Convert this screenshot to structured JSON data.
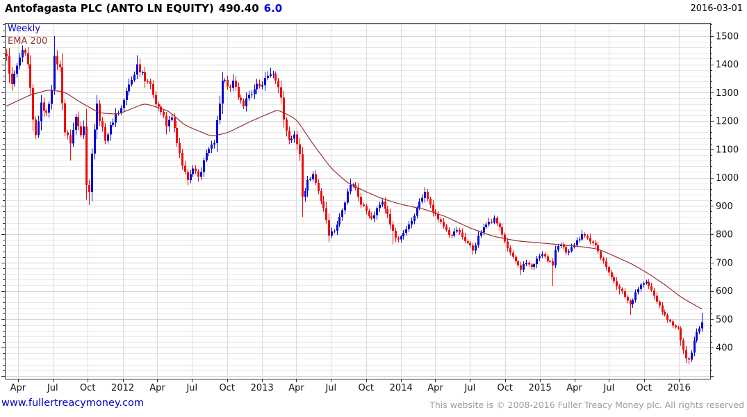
{
  "header": {
    "title": "Antofagasta PLC (ANTO LN EQUITY)",
    "last_price": "490.40",
    "change": "6.0",
    "date": "2016-03-01"
  },
  "footer": {
    "site": "www.fullertreacymoney.com",
    "copyright": "This website is © 2008-2016 Fuller Treacy Money plc. All rights reserved"
  },
  "chart_data": {
    "type": "candlestick",
    "title": "Antofagasta PLC (ANTO LN EQUITY)",
    "frequency": "Weekly",
    "overlay": "EMA 200",
    "last_close": 490.4,
    "change": 6.0,
    "as_of_date": "2016-03-01",
    "axes": {
      "x_start": "2011-03-01",
      "x_end": "2016-02-29",
      "ylim": [
        290,
        1546
      ],
      "yticks": [
        400,
        500,
        600,
        700,
        800,
        900,
        1000,
        1100,
        1200,
        1300,
        1400,
        1500
      ],
      "y_minor_step": 20,
      "grid": true,
      "y_labels_side": "right"
    },
    "xticks": [
      {
        "d": "2011-04-01",
        "label": "Apr"
      },
      {
        "d": "2011-07-01",
        "label": "Jul"
      },
      {
        "d": "2011-10-01",
        "label": "Oct"
      },
      {
        "d": "2012-01-01",
        "label": "2012"
      },
      {
        "d": "2012-04-01",
        "label": "Apr"
      },
      {
        "d": "2012-07-01",
        "label": "Jul"
      },
      {
        "d": "2012-10-01",
        "label": "Oct"
      },
      {
        "d": "2013-01-01",
        "label": "2013"
      },
      {
        "d": "2013-04-01",
        "label": "Apr"
      },
      {
        "d": "2013-07-01",
        "label": "Jul"
      },
      {
        "d": "2013-10-01",
        "label": "Oct"
      },
      {
        "d": "2014-01-01",
        "label": "2014"
      },
      {
        "d": "2014-04-01",
        "label": "Apr"
      },
      {
        "d": "2014-07-01",
        "label": "Jul"
      },
      {
        "d": "2014-10-01",
        "label": "Oct"
      },
      {
        "d": "2015-01-01",
        "label": "2015"
      },
      {
        "d": "2015-04-01",
        "label": "Apr"
      },
      {
        "d": "2015-07-01",
        "label": "Jul"
      },
      {
        "d": "2015-10-01",
        "label": "Oct"
      },
      {
        "d": "2016-01-01",
        "label": "2016"
      }
    ],
    "colors": {
      "up": "#0a0ad4",
      "down": "#ec0e0e",
      "ema": "#993333",
      "grid_minor": "#e8e8e8",
      "grid_major": "#d4d4d4",
      "grid_vertical": "#dcdcdc",
      "border": "#333333",
      "axis_text": "#111111",
      "change_text": "#0000dd",
      "link": "#0000cc",
      "copyright": "#9c9c9c"
    },
    "close_anchors": [
      [
        "2011-03-01",
        1430
      ],
      [
        "2011-03-14",
        1330
      ],
      [
        "2011-03-28",
        1395
      ],
      [
        "2011-04-11",
        1450
      ],
      [
        "2011-04-25",
        1400
      ],
      [
        "2011-05-09",
        1205
      ],
      [
        "2011-05-16",
        1150,
        null,
        1138
      ],
      [
        "2011-05-30",
        1265
      ],
      [
        "2011-06-13",
        1230
      ],
      [
        "2011-06-27",
        1310
      ],
      [
        "2011-07-04",
        1430,
        1500
      ],
      [
        "2011-07-18",
        1390
      ],
      [
        "2011-08-01",
        1160
      ],
      [
        "2011-08-15",
        1120,
        null,
        1060
      ],
      [
        "2011-08-29",
        1215
      ],
      [
        "2011-09-12",
        1150
      ],
      [
        "2011-09-19",
        1180
      ],
      [
        "2011-09-26",
        975,
        null,
        940
      ],
      [
        "2011-10-03",
        950,
        null,
        903
      ],
      [
        "2011-10-10",
        1085
      ],
      [
        "2011-10-24",
        1262,
        1285
      ],
      [
        "2011-10-31",
        1200
      ],
      [
        "2011-11-14",
        1130
      ],
      [
        "2011-11-28",
        1185
      ],
      [
        "2011-12-12",
        1225
      ],
      [
        "2011-12-26",
        1245
      ],
      [
        "2012-01-09",
        1305
      ],
      [
        "2012-01-23",
        1345
      ],
      [
        "2012-02-06",
        1400,
        1432
      ],
      [
        "2012-02-20",
        1372
      ],
      [
        "2012-03-05",
        1340
      ],
      [
        "2012-03-19",
        1292
      ],
      [
        "2012-04-09",
        1232
      ],
      [
        "2012-04-23",
        1182,
        null,
        1152
      ],
      [
        "2012-05-07",
        1212
      ],
      [
        "2012-05-21",
        1122
      ],
      [
        "2012-06-04",
        1042
      ],
      [
        "2012-06-18",
        992,
        null,
        976
      ],
      [
        "2012-07-02",
        1032
      ],
      [
        "2012-07-16",
        1002
      ],
      [
        "2012-07-30",
        1062
      ],
      [
        "2012-08-13",
        1102
      ],
      [
        "2012-08-27",
        1122
      ],
      [
        "2012-09-10",
        1262
      ],
      [
        "2012-09-17",
        1342
      ],
      [
        "2012-10-01",
        1322
      ],
      [
        "2012-10-15",
        1342,
        1366
      ],
      [
        "2012-10-29",
        1282
      ],
      [
        "2012-11-12",
        1252
      ],
      [
        "2012-11-26",
        1292
      ],
      [
        "2012-12-10",
        1312
      ],
      [
        "2012-12-24",
        1322
      ],
      [
        "2013-01-07",
        1352
      ],
      [
        "2013-01-21",
        1365,
        1388
      ],
      [
        "2013-02-04",
        1342
      ],
      [
        "2013-02-18",
        1282
      ],
      [
        "2013-02-25",
        1205
      ],
      [
        "2013-03-11",
        1132
      ],
      [
        "2013-03-25",
        1152
      ],
      [
        "2013-04-08",
        1082
      ],
      [
        "2013-04-15",
        932,
        null,
        862
      ],
      [
        "2013-04-29",
        992
      ],
      [
        "2013-05-13",
        1012
      ],
      [
        "2013-05-27",
        952
      ],
      [
        "2013-06-10",
        892
      ],
      [
        "2013-06-24",
        795,
        null,
        772
      ],
      [
        "2013-07-08",
        812
      ],
      [
        "2013-07-22",
        862
      ],
      [
        "2013-08-05",
        912
      ],
      [
        "2013-08-19",
        975,
        995
      ],
      [
        "2013-09-02",
        962
      ],
      [
        "2013-09-16",
        905
      ],
      [
        "2013-09-30",
        882
      ],
      [
        "2013-10-14",
        855
      ],
      [
        "2013-10-28",
        892
      ],
      [
        "2013-11-11",
        915
      ],
      [
        "2013-11-25",
        872
      ],
      [
        "2013-12-09",
        812,
        null,
        765
      ],
      [
        "2013-12-23",
        782
      ],
      [
        "2014-01-06",
        805
      ],
      [
        "2014-01-20",
        835
      ],
      [
        "2014-02-03",
        865
      ],
      [
        "2014-02-17",
        915
      ],
      [
        "2014-03-03",
        950,
        966
      ],
      [
        "2014-03-17",
        905
      ],
      [
        "2014-03-31",
        872
      ],
      [
        "2014-04-14",
        845
      ],
      [
        "2014-04-28",
        815
      ],
      [
        "2014-05-12",
        795
      ],
      [
        "2014-05-26",
        815
      ],
      [
        "2014-06-09",
        790
      ],
      [
        "2014-06-23",
        770
      ],
      [
        "2014-07-07",
        742,
        null,
        728
      ],
      [
        "2014-07-21",
        795
      ],
      [
        "2014-08-04",
        825
      ],
      [
        "2014-08-18",
        845
      ],
      [
        "2014-09-01",
        858
      ],
      [
        "2014-09-15",
        825
      ],
      [
        "2014-09-29",
        775
      ],
      [
        "2014-10-13",
        735
      ],
      [
        "2014-10-27",
        705
      ],
      [
        "2014-11-10",
        675,
        null,
        656
      ],
      [
        "2014-11-24",
        700
      ],
      [
        "2014-12-08",
        685
      ],
      [
        "2014-12-22",
        715
      ],
      [
        "2015-01-05",
        730
      ],
      [
        "2015-01-19",
        705
      ],
      [
        "2015-02-02",
        690,
        null,
        618
      ],
      [
        "2015-02-09",
        745
      ],
      [
        "2015-02-23",
        765
      ],
      [
        "2015-03-09",
        735
      ],
      [
        "2015-03-23",
        755
      ],
      [
        "2015-04-06",
        780
      ],
      [
        "2015-04-20",
        800,
        816
      ],
      [
        "2015-05-04",
        788
      ],
      [
        "2015-05-18",
        770
      ],
      [
        "2015-06-01",
        740
      ],
      [
        "2015-06-15",
        705
      ],
      [
        "2015-06-29",
        665
      ],
      [
        "2015-07-13",
        635
      ],
      [
        "2015-07-27",
        608,
        null,
        588
      ],
      [
        "2015-08-10",
        580
      ],
      [
        "2015-08-24",
        552,
        null,
        516
      ],
      [
        "2015-09-07",
        595
      ],
      [
        "2015-09-21",
        622
      ],
      [
        "2015-10-05",
        632
      ],
      [
        "2015-10-19",
        602
      ],
      [
        "2015-11-02",
        562
      ],
      [
        "2015-11-16",
        525
      ],
      [
        "2015-11-30",
        498
      ],
      [
        "2015-12-14",
        478
      ],
      [
        "2015-12-28",
        468
      ],
      [
        "2016-01-11",
        392
      ],
      [
        "2016-01-18",
        362,
        null,
        346
      ],
      [
        "2016-01-25",
        357,
        null,
        340
      ],
      [
        "2016-02-01",
        382
      ],
      [
        "2016-02-08",
        425
      ],
      [
        "2016-02-15",
        455
      ],
      [
        "2016-02-22",
        468
      ],
      [
        "2016-02-29",
        490.4,
        523,
        455
      ]
    ],
    "ema_anchors": [
      [
        "2011-03-01",
        1252
      ],
      [
        "2011-05-01",
        1292
      ],
      [
        "2011-06-20",
        1310
      ],
      [
        "2011-08-01",
        1302
      ],
      [
        "2011-09-15",
        1265
      ],
      [
        "2011-11-01",
        1228
      ],
      [
        "2011-12-20",
        1224
      ],
      [
        "2012-03-01",
        1262
      ],
      [
        "2012-05-01",
        1235
      ],
      [
        "2012-06-15",
        1185
      ],
      [
        "2012-08-20",
        1146
      ],
      [
        "2012-10-01",
        1158
      ],
      [
        "2012-12-01",
        1200
      ],
      [
        "2013-02-10",
        1240
      ],
      [
        "2013-04-01",
        1205
      ],
      [
        "2013-05-15",
        1120
      ],
      [
        "2013-07-01",
        1032
      ],
      [
        "2013-08-15",
        982
      ],
      [
        "2013-10-01",
        950
      ],
      [
        "2013-11-15",
        926
      ],
      [
        "2014-01-01",
        906
      ],
      [
        "2014-03-05",
        888
      ],
      [
        "2014-05-01",
        862
      ],
      [
        "2014-07-01",
        822
      ],
      [
        "2014-09-01",
        792
      ],
      [
        "2014-11-01",
        776
      ],
      [
        "2015-01-01",
        770
      ],
      [
        "2015-03-01",
        762
      ],
      [
        "2015-04-20",
        756
      ],
      [
        "2015-06-01",
        748
      ],
      [
        "2015-07-10",
        728
      ],
      [
        "2015-08-30",
        694
      ],
      [
        "2015-10-22",
        655
      ],
      [
        "2015-11-28",
        616
      ],
      [
        "2016-01-03",
        579
      ],
      [
        "2016-02-08",
        552
      ],
      [
        "2016-02-29",
        536
      ]
    ]
  }
}
